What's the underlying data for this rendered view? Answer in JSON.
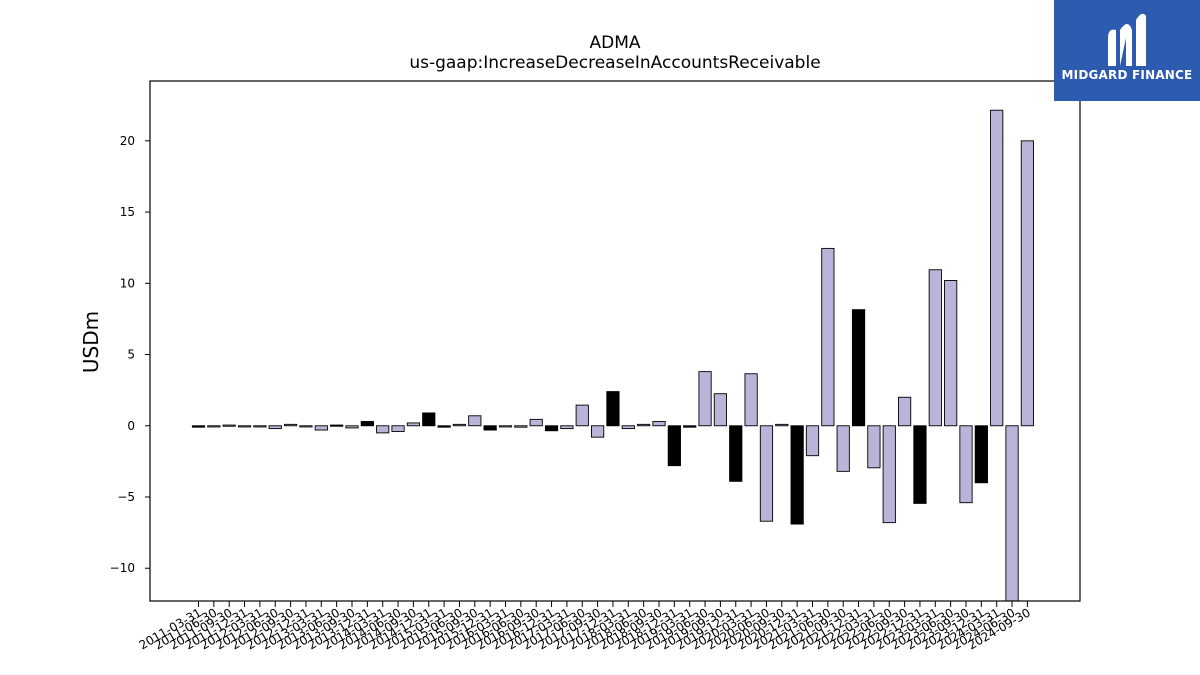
{
  "chart_data": {
    "type": "bar",
    "title": "ADMA",
    "subtitle": "us-gaap:IncreaseDecreaseInAccountsReceivable",
    "xlabel": "",
    "ylabel": "USDm",
    "ylim": [
      -12.3,
      24.2
    ],
    "yticks": [
      -10,
      -5,
      0,
      5,
      10,
      15,
      20
    ],
    "ytick_labels": [
      "−10",
      "−5",
      "0",
      "5",
      "10",
      "15",
      "20"
    ],
    "grid": false,
    "colors": {
      "positive_fill": "#bab4d9",
      "negative_fill": "#bab4d9",
      "highlight_fill": "#000000",
      "edge": "#000000"
    },
    "categories": [
      "2011-03-31",
      "2011-06-30",
      "2011-09-30",
      "2011-12-31",
      "2012-03-31",
      "2012-06-30",
      "2012-09-30",
      "2012-12-31",
      "2013-03-31",
      "2013-06-30",
      "2013-09-30",
      "2013-12-31",
      "2014-03-31",
      "2014-06-30",
      "2014-09-30",
      "2014-12-31",
      "2015-03-31",
      "2015-06-30",
      "2015-09-30",
      "2015-12-31",
      "2016-03-31",
      "2016-06-30",
      "2016-09-30",
      "2016-12-31",
      "2017-03-31",
      "2017-06-30",
      "2017-09-30",
      "2017-12-31",
      "2018-03-31",
      "2018-06-30",
      "2018-09-30",
      "2018-12-31",
      "2019-03-31",
      "2019-06-30",
      "2019-09-30",
      "2019-12-31",
      "2020-03-31",
      "2020-06-30",
      "2020-09-30",
      "2020-12-31",
      "2021-03-31",
      "2021-06-30",
      "2021-09-30",
      "2021-12-31",
      "2022-03-31",
      "2022-06-30",
      "2022-09-30",
      "2022-12-31",
      "2023-03-31",
      "2023-06-30",
      "2023-09-30",
      "2023-12-31",
      "2024-03-31",
      "2024-06-30",
      "2024-09-30"
    ],
    "values": [
      -0.1,
      -0.05,
      0.05,
      -0.05,
      -0.05,
      -0.2,
      0.1,
      -0.05,
      -0.3,
      0.05,
      -0.15,
      0.3,
      -0.5,
      -0.4,
      0.2,
      0.9,
      -0.1,
      0.1,
      0.7,
      -0.3,
      -0.05,
      -0.1,
      0.45,
      -0.35,
      -0.2,
      1.45,
      -0.8,
      2.4,
      -0.2,
      0.1,
      0.3,
      -2.8,
      -0.1,
      3.8,
      2.25,
      -3.9,
      3.65,
      -6.7,
      0.1,
      -6.9,
      -2.1,
      12.45,
      -3.2,
      8.15,
      -2.95,
      -6.8,
      2.0,
      -5.45,
      10.95,
      10.2,
      -5.4,
      -4.0,
      22.15,
      -12.5,
      20.0
    ],
    "highlight": [
      true,
      false,
      false,
      false,
      false,
      false,
      false,
      false,
      false,
      true,
      false,
      true,
      false,
      false,
      false,
      true,
      true,
      false,
      false,
      true,
      false,
      false,
      false,
      true,
      false,
      false,
      false,
      true,
      false,
      false,
      false,
      true,
      true,
      false,
      false,
      true,
      false,
      false,
      false,
      true,
      false,
      false,
      false,
      true,
      false,
      false,
      false,
      true,
      false,
      false,
      false,
      true,
      false,
      false,
      false
    ]
  },
  "brand": {
    "name": "MIDGARD FINANCE",
    "color": "#2d5bb0",
    "icon": "midgard-logo-icon"
  }
}
